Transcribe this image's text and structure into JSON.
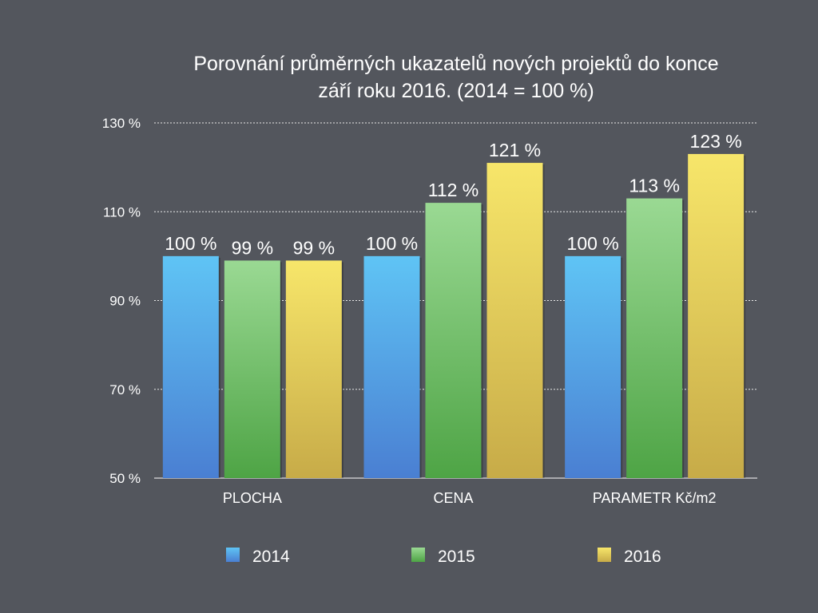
{
  "chart_data": {
    "type": "bar",
    "title_lines": [
      "Porovnání průměrných ukazatelů nových projektů do konce",
      "září roku 2016. (2014 = 100 %)"
    ],
    "categories": [
      "PLOCHA",
      "CENA",
      "PARAMETR Kč/m2"
    ],
    "series": [
      {
        "name": "2014",
        "values": [
          100,
          100,
          100
        ],
        "labels": [
          "100 %",
          "100 %",
          "100 %"
        ],
        "color_top": "#5fc4f5",
        "color_bottom": "#4a7fd2"
      },
      {
        "name": "2015",
        "values": [
          99,
          112,
          113
        ],
        "labels": [
          "99 %",
          "112 %",
          "113 %"
        ],
        "color_top": "#9ad993",
        "color_bottom": "#4ea445"
      },
      {
        "name": "2016",
        "values": [
          99,
          121,
          123
        ],
        "labels": [
          "99 %",
          "121 %",
          "123 %"
        ],
        "color_top": "#f7e66a",
        "color_bottom": "#c7ab48"
      }
    ],
    "ylim": [
      50,
      130
    ],
    "yticks": [
      50,
      70,
      90,
      110,
      130
    ],
    "ytick_labels": [
      "50 %",
      "70 %",
      "90 %",
      "110 %",
      "130 %"
    ],
    "grid": true,
    "legend_position": "bottom",
    "xlabel": "",
    "ylabel": ""
  }
}
